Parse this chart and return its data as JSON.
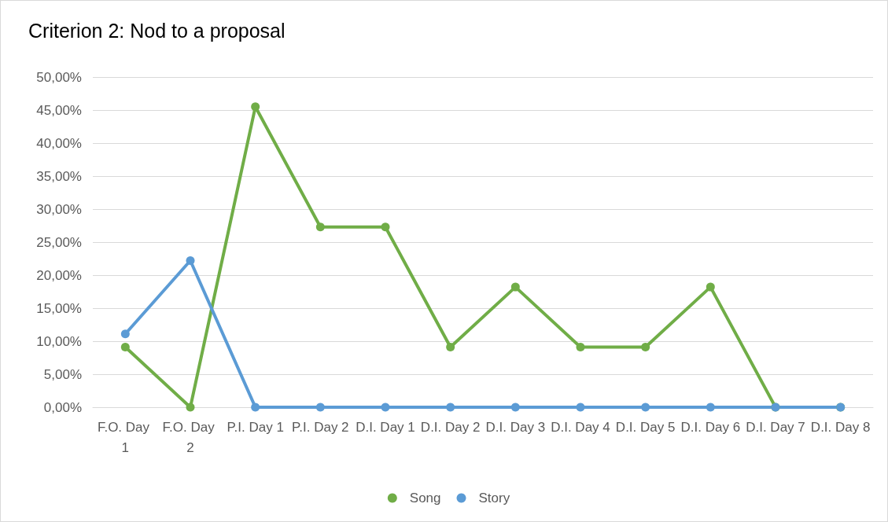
{
  "chart_data": {
    "type": "line",
    "title": "Criterion 2: Nod to a proposal",
    "categories": [
      "F.O. Day 1",
      "F.O. Day 2",
      "P.I. Day 1",
      "P.I. Day 2",
      "D.I. Day 1",
      "D.I. Day 2",
      "D.I. Day 3",
      "D.I. Day 4",
      "D.I. Day 5",
      "D.I. Day 6",
      "D.I. Day 7",
      "D.I. Day 8"
    ],
    "series": [
      {
        "name": "Song",
        "color": "#70ad47",
        "values": [
          9.1,
          0,
          45.5,
          27.3,
          27.3,
          9.1,
          18.2,
          9.1,
          9.1,
          18.2,
          0,
          0
        ]
      },
      {
        "name": "Story",
        "color": "#5b9bd5",
        "values": [
          11.1,
          22.2,
          0,
          0,
          0,
          0,
          0,
          0,
          0,
          0,
          0,
          0
        ]
      }
    ],
    "ylim": [
      0,
      50
    ],
    "yticks": [
      {
        "value": 0,
        "label": "0,00%"
      },
      {
        "value": 5,
        "label": "5,00%"
      },
      {
        "value": 10,
        "label": "10,00%"
      },
      {
        "value": 15,
        "label": "15,00%"
      },
      {
        "value": 20,
        "label": "20,00%"
      },
      {
        "value": 25,
        "label": "25,00%"
      },
      {
        "value": 30,
        "label": "30,00%"
      },
      {
        "value": 35,
        "label": "35,00%"
      },
      {
        "value": 40,
        "label": "40,00%"
      },
      {
        "value": 45,
        "label": "45,00%"
      },
      {
        "value": 50,
        "label": "50,00%"
      }
    ],
    "grid": "y",
    "legend": "bottom",
    "marker": "circle",
    "line_style": "solid"
  }
}
